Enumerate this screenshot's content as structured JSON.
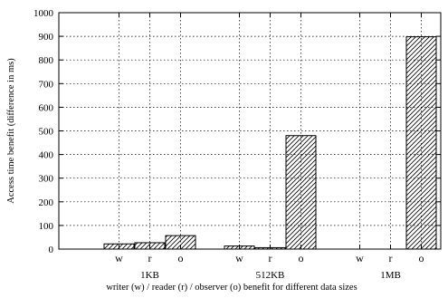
{
  "chart_data": {
    "type": "bar",
    "title": "",
    "ylabel": "Access time benefit (difference in ms)",
    "xlabel": "writer (w) / reader (r) / observer (o) benefit for different data sizes",
    "ylim": [
      0,
      1000
    ],
    "yticks": [
      0,
      100,
      200,
      300,
      400,
      500,
      600,
      700,
      800,
      900,
      1000
    ],
    "grid": true,
    "groups": [
      {
        "name": "1KB",
        "bars": [
          {
            "label": "w",
            "value": 22
          },
          {
            "label": "r",
            "value": 27
          },
          {
            "label": "o",
            "value": 57
          }
        ]
      },
      {
        "name": "512KB",
        "bars": [
          {
            "label": "w",
            "value": 13
          },
          {
            "label": "r",
            "value": 6
          },
          {
            "label": "o",
            "value": 480
          }
        ]
      },
      {
        "name": "1MB",
        "bars": [
          {
            "label": "w",
            "value": 0
          },
          {
            "label": "r",
            "value": 0
          },
          {
            "label": "o",
            "value": 898
          }
        ]
      }
    ]
  }
}
